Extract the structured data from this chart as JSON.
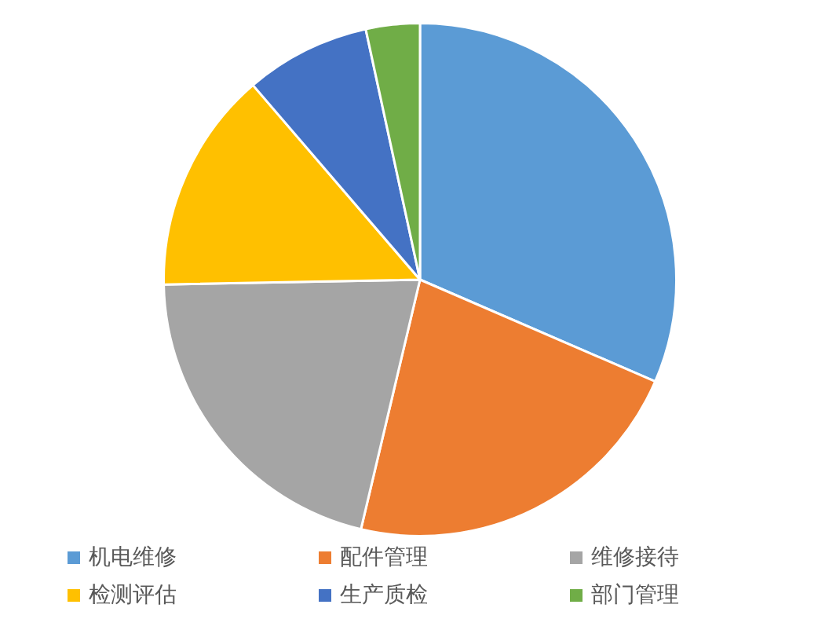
{
  "chart_data": {
    "type": "pie",
    "categories": [
      "机电维修",
      "配件管理",
      "维修接待",
      "检测评估",
      "生产质检",
      "部门管理"
    ],
    "values": [
      31.5,
      22.2,
      21,
      14,
      7.9,
      3.4
    ],
    "colors": [
      "#5b9bd5",
      "#ed7d31",
      "#a5a5a5",
      "#ffc000",
      "#4472c4",
      "#70ad47"
    ],
    "legend": "bottom"
  }
}
